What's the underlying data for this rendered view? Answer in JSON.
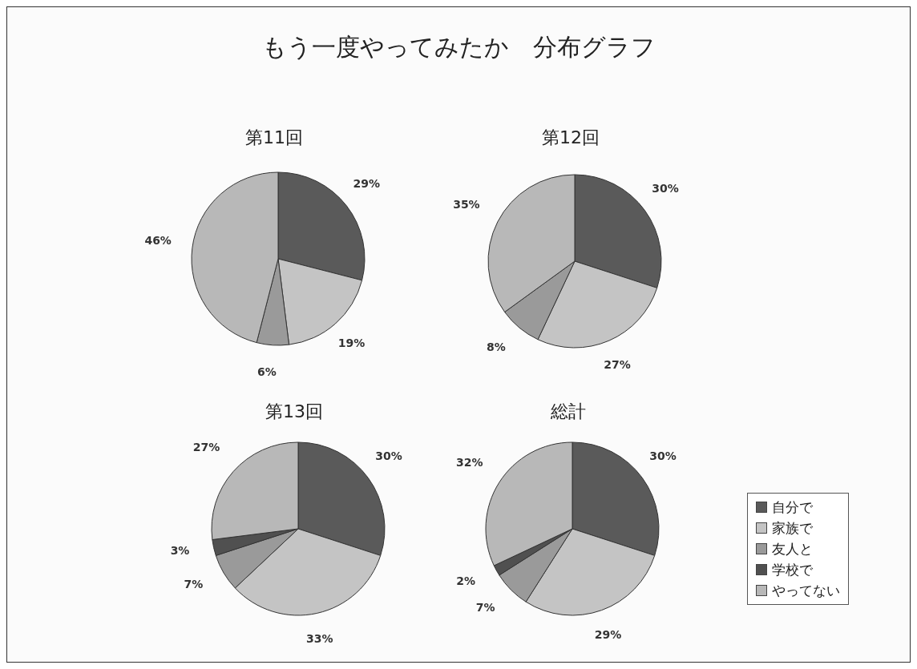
{
  "chart_data": [
    {
      "type": "pie",
      "title": "第11回",
      "annotations": [
        "もう一度やってみたか　分布グラフ"
      ],
      "categories": [
        null,
        null,
        null,
        null,
        null
      ],
      "values": [
        29,
        19,
        6,
        0,
        46
      ],
      "value_labels": [
        "29%",
        "19%",
        "6%",
        null,
        "46%"
      ],
      "colors": [
        "#5a5a5a",
        "#c4c4c4",
        "#9a9a9a",
        "#505050",
        "#b8b8b8"
      ]
    },
    {
      "type": "pie",
      "title": "第12回",
      "categories": [
        null,
        null,
        null,
        null,
        null
      ],
      "values": [
        30,
        27,
        8,
        0,
        35
      ],
      "value_labels": [
        "30%",
        "27%",
        "8%",
        null,
        "35%"
      ],
      "colors": [
        "#5a5a5a",
        "#c4c4c4",
        "#9a9a9a",
        "#505050",
        "#b8b8b8"
      ]
    },
    {
      "type": "pie",
      "title": "第13回",
      "categories": [
        null,
        null,
        null,
        null,
        null
      ],
      "values": [
        30,
        33,
        7,
        3,
        27
      ],
      "value_labels": [
        "30%",
        "33%",
        "7%",
        "3%",
        "27%"
      ],
      "colors": [
        "#5a5a5a",
        "#c4c4c4",
        "#9a9a9a",
        "#505050",
        "#b8b8b8"
      ]
    },
    {
      "type": "pie",
      "title": "総計",
      "categories": [
        "自分で",
        "家族で",
        "友人と",
        "学校で",
        "やってない"
      ],
      "values": [
        30,
        29,
        7,
        2,
        32
      ],
      "value_labels": [
        "30%",
        "29%",
        "7%",
        "2%",
        "32%"
      ],
      "colors": [
        "#5a5a5a",
        "#c4c4c4",
        "#9a9a9a",
        "#505050",
        "#b8b8b8"
      ],
      "legend": "right"
    }
  ]
}
